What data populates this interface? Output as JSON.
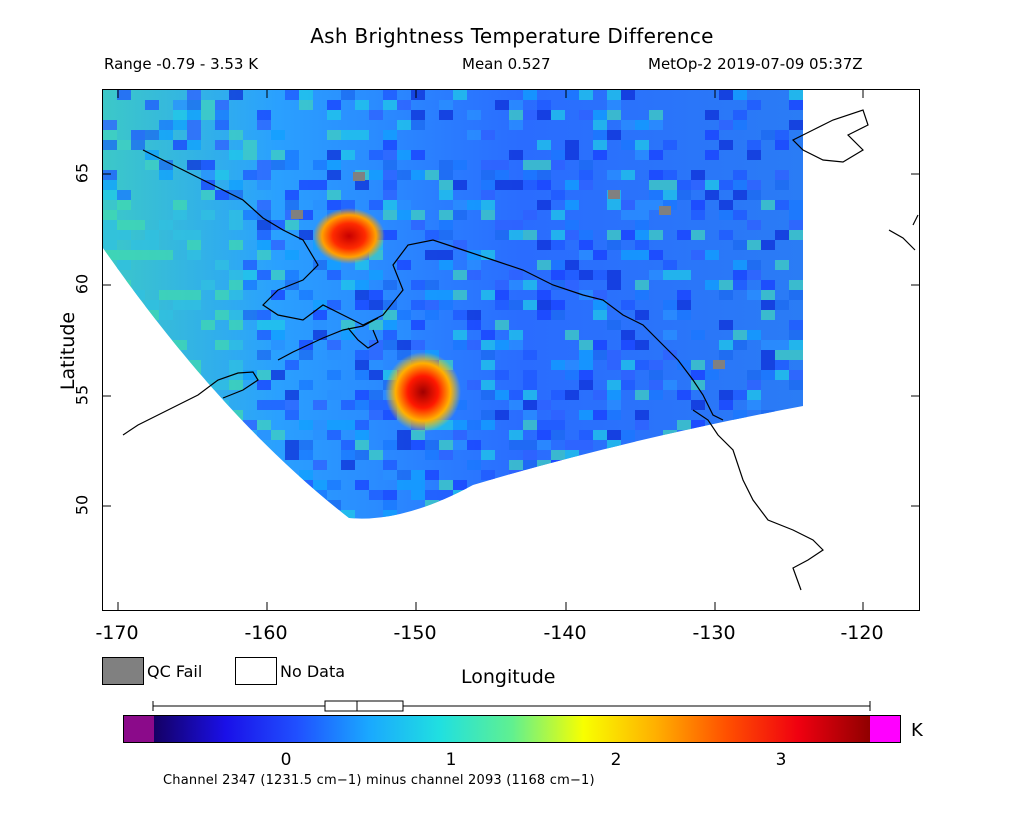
{
  "title": "Ash Brightness Temperature Difference",
  "range_text": "Range -0.79 - 3.53 K",
  "mean_text": "Mean 0.527",
  "satellite_time": "MetOp-2 2019-07-09 05:37Z",
  "x_axis": {
    "label": "Longitude",
    "ticks": [
      "-170",
      "-160",
      "-150",
      "-140",
      "-130",
      "-120"
    ]
  },
  "y_axis": {
    "label": "Latitude",
    "ticks": [
      "65",
      "60",
      "55",
      "50"
    ]
  },
  "legend": {
    "qc_fail": "QC Fail",
    "no_data": "No Data",
    "qc_color": "#808080",
    "nodata_color": "#ffffff"
  },
  "colorbar": {
    "unit": "K",
    "ticks": [
      "0",
      "1",
      "2",
      "3"
    ],
    "underflow_color": "#8b0a8a",
    "overflow_color": "#ff00ff",
    "stops": [
      "#140064",
      "#1a10e8",
      "#2050ff",
      "#1aa8ff",
      "#20e0e0",
      "#60f090",
      "#f8ff00",
      "#ffb000",
      "#ff5000",
      "#f00010",
      "#900000"
    ]
  },
  "caption": "Channel 2347 (1231.5 cm−1) minus channel 2093 (1168 cm−1)",
  "map_features": {
    "data_mean_K": 0.527,
    "hotspots": [
      {
        "name": "hotspot-1",
        "lon": -154,
        "lat": 61.8,
        "peak_K": 3.1
      },
      {
        "name": "hotspot-2",
        "lon": -149.2,
        "lat": 55.2,
        "peak_K": 3.5
      }
    ]
  }
}
